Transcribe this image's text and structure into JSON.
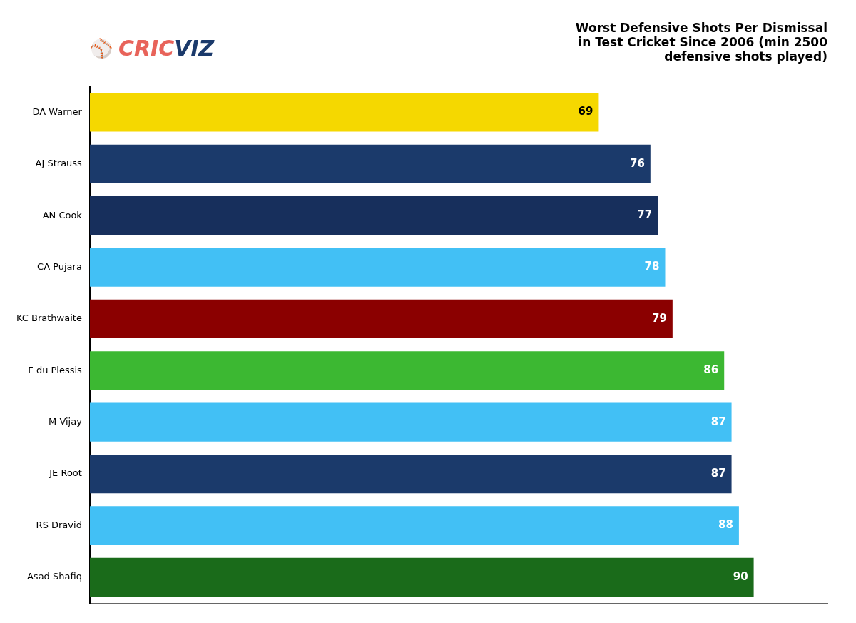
{
  "chart_data": {
    "type": "bar",
    "orientation": "horizontal",
    "title": "Worst Defensive Shots Per Dismissal\nin Test Cricket Since 2006 (min 2500\ndefensive shots played)",
    "categories": [
      "DA Warner",
      "AJ Strauss",
      "AN Cook",
      "CA Pujara",
      "KC Brathwaite",
      "F du Plessis",
      "M Vijay",
      "JE Root",
      "RS Dravid",
      "Asad Shafiq"
    ],
    "values": [
      69,
      76,
      77,
      78,
      79,
      86,
      87,
      87,
      88,
      90
    ],
    "colors": [
      "#F5D800",
      "#1B3A6B",
      "#172F5C",
      "#42C0F5",
      "#8B0000",
      "#3CB832",
      "#42C0F5",
      "#1B3A6B",
      "#42C0F5",
      "#1A6B1A"
    ],
    "xlim": [
      0,
      100
    ],
    "data_labels": true,
    "tick_labels": "y",
    "grid": false,
    "annotations": [
      {
        "text": "⚾",
        "color": "#C0837A"
      },
      {
        "text": "CRIC",
        "color": "#E8635A"
      },
      {
        "text": "VIZ",
        "color": "#1B3A6B"
      }
    ]
  }
}
